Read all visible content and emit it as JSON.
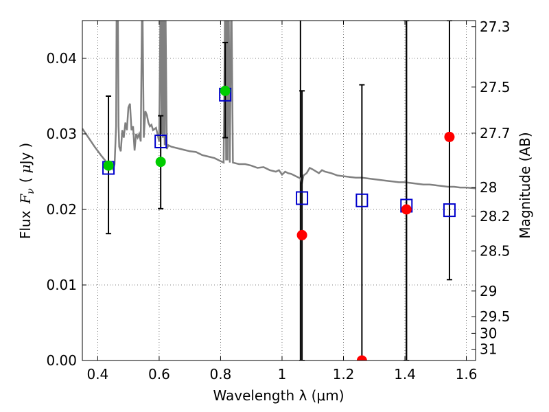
{
  "chart_data": {
    "type": "scatter",
    "xlabel": "Wavelength  λ (μm)",
    "ylabel": {
      "text": "Flux",
      "math": "F",
      "sub": "ν",
      "unit_open": "(",
      "unit_mu": "μ",
      "unit_rest": "Jy",
      "unit_close": ")"
    },
    "y2label": "Magnitude (AB)",
    "xlim": [
      0.35,
      1.63
    ],
    "ylim": [
      0.0,
      0.045
    ],
    "grid": true,
    "x_ticks": [
      0.4,
      0.6,
      0.8,
      1.0,
      1.2,
      1.4,
      1.6
    ],
    "x_tick_labels": [
      "0.4",
      "0.6",
      "0.8",
      "1",
      "1.2",
      "1.4",
      "1.6"
    ],
    "y_ticks": [
      0.0,
      0.01,
      0.02,
      0.03,
      0.04
    ],
    "y_tick_labels": [
      "0.00",
      "0.01",
      "0.02",
      "0.03",
      "0.04"
    ],
    "y2_ticks": [
      {
        "label": "27.3",
        "flux": 0.0442
      },
      {
        "label": "27.5",
        "flux": 0.0362
      },
      {
        "label": "27.7",
        "flux": 0.0301
      },
      {
        "label": "28",
        "flux": 0.0229
      },
      {
        "label": "28.2",
        "flux": 0.0191
      },
      {
        "label": "28.5",
        "flux": 0.0145
      },
      {
        "label": "29",
        "flux": 0.0092
      },
      {
        "label": "29.5",
        "flux": 0.0058
      },
      {
        "label": "30",
        "flux": 0.0036
      },
      {
        "label": "31",
        "flux": 0.0015
      }
    ],
    "vlines": [
      1.06,
      1.405
    ],
    "model_spectrum": {
      "color": "#808080",
      "x": [
        0.35,
        0.37,
        0.39,
        0.41,
        0.43,
        0.45,
        0.455,
        0.46,
        0.462,
        0.465,
        0.468,
        0.47,
        0.475,
        0.48,
        0.485,
        0.49,
        0.495,
        0.5,
        0.505,
        0.51,
        0.515,
        0.52,
        0.525,
        0.53,
        0.535,
        0.54,
        0.545,
        0.55,
        0.555,
        0.56,
        0.565,
        0.57,
        0.575,
        0.58,
        0.59,
        0.6,
        0.605,
        0.608,
        0.61,
        0.612,
        0.615,
        0.618,
        0.62,
        0.625,
        0.63,
        0.64,
        0.66,
        0.68,
        0.7,
        0.72,
        0.74,
        0.76,
        0.78,
        0.8,
        0.81,
        0.815,
        0.818,
        0.82,
        0.823,
        0.826,
        0.83,
        0.835,
        0.84,
        0.86,
        0.88,
        0.9,
        0.92,
        0.94,
        0.96,
        0.98,
        0.99,
        1.0,
        1.01,
        1.02,
        1.03,
        1.04,
        1.05,
        1.06,
        1.065,
        1.07,
        1.08,
        1.09,
        1.1,
        1.12,
        1.13,
        1.14,
        1.16,
        1.18,
        1.2,
        1.22,
        1.24,
        1.26,
        1.28,
        1.3,
        1.32,
        1.34,
        1.36,
        1.38,
        1.4,
        1.42,
        1.44,
        1.46,
        1.48,
        1.5,
        1.52,
        1.54,
        1.56,
        1.58,
        1.6,
        1.63
      ],
      "y": [
        0.0307,
        0.0295,
        0.0283,
        0.0272,
        0.0262,
        0.0253,
        0.026,
        0.031,
        0.05,
        0.05,
        0.031,
        0.0283,
        0.0277,
        0.0305,
        0.0295,
        0.0315,
        0.0305,
        0.0335,
        0.034,
        0.0305,
        0.031,
        0.0278,
        0.03,
        0.0295,
        0.03,
        0.029,
        0.05,
        0.0295,
        0.033,
        0.0325,
        0.0315,
        0.031,
        0.0312,
        0.0305,
        0.0308,
        0.029,
        0.05,
        0.03,
        0.05,
        0.0295,
        0.05,
        0.0285,
        0.05,
        0.028,
        0.0285,
        0.0283,
        0.0281,
        0.0279,
        0.0277,
        0.0276,
        0.0272,
        0.027,
        0.0268,
        0.0264,
        0.0262,
        0.05,
        0.0265,
        0.05,
        0.0265,
        0.05,
        0.0262,
        0.05,
        0.0262,
        0.026,
        0.026,
        0.0258,
        0.0255,
        0.0256,
        0.0252,
        0.025,
        0.0252,
        0.0246,
        0.025,
        0.0248,
        0.0247,
        0.0245,
        0.0243,
        0.0241,
        0.0235,
        0.0245,
        0.0248,
        0.0255,
        0.0253,
        0.0248,
        0.0252,
        0.025,
        0.0248,
        0.0245,
        0.0244,
        0.0243,
        0.0242,
        0.0242,
        0.0241,
        0.024,
        0.0239,
        0.0238,
        0.0237,
        0.0236,
        0.0236,
        0.0235,
        0.0234,
        0.0233,
        0.0233,
        0.0232,
        0.0231,
        0.023,
        0.023,
        0.0229,
        0.0229,
        0.0228
      ]
    },
    "series": [
      {
        "marker": "open-square",
        "color": "#0000cc",
        "x": [
          0.435,
          0.605,
          0.815,
          1.065,
          1.26,
          1.405,
          1.545
        ],
        "y": [
          0.0255,
          0.029,
          0.0352,
          0.0215,
          0.0212,
          0.0205,
          0.0199
        ]
      },
      {
        "marker": "filled-circle",
        "color": "#00cc00",
        "x": [
          0.435,
          0.605,
          0.815
        ],
        "y": [
          0.0258,
          0.0263,
          0.0357
        ]
      },
      {
        "marker": "filled-circle",
        "color": "#ff0000",
        "x": [
          1.065,
          1.26,
          1.405,
          1.545
        ],
        "y": [
          0.0166,
          0.0,
          0.02,
          0.0296
        ]
      }
    ],
    "errorbars": [
      {
        "x": 0.435,
        "low": 0.0168,
        "high": 0.035
      },
      {
        "x": 0.605,
        "low": 0.0201,
        "high": 0.0324
      },
      {
        "x": 0.815,
        "low": 0.0295,
        "high": 0.0421
      },
      {
        "x": 1.065,
        "low": 0.0,
        "high": 0.0357
      },
      {
        "x": 1.26,
        "low": 0.0,
        "high": 0.0365
      },
      {
        "x": 1.405,
        "low": 0.0,
        "high": 0.045
      },
      {
        "x": 1.545,
        "low": 0.0107,
        "high": 0.045
      }
    ]
  }
}
